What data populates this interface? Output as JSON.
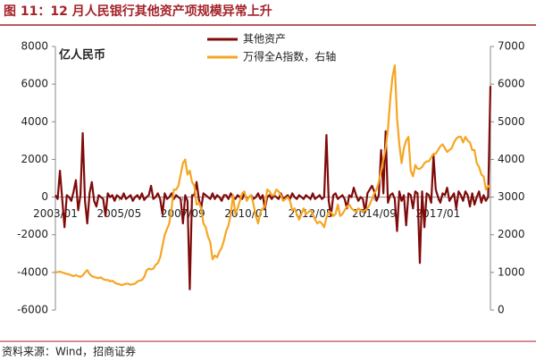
{
  "chart_data": {
    "type": "line",
    "title": "图 11：12 月人民银行其他资产项规模异常上升",
    "annotation": "亿人民币",
    "source": "资料来源：Wind，招商证券",
    "categories": [
      "2003/01",
      null,
      null,
      null,
      null,
      null,
      null,
      null,
      null,
      null,
      null,
      null,
      null,
      null,
      null,
      null,
      null,
      null,
      null,
      null,
      null,
      null,
      null,
      null,
      null,
      null,
      null,
      null,
      "2005/05",
      null,
      null,
      null,
      null,
      null,
      null,
      null,
      null,
      null,
      null,
      null,
      null,
      null,
      null,
      null,
      null,
      null,
      null,
      null,
      null,
      null,
      null,
      null,
      null,
      null,
      null,
      null,
      "2007/09",
      null,
      null,
      null,
      null,
      null,
      null,
      null,
      null,
      null,
      null,
      null,
      null,
      null,
      null,
      null,
      null,
      null,
      null,
      null,
      null,
      null,
      null,
      null,
      null,
      null,
      null,
      null,
      "2010/01",
      null,
      null,
      null,
      null,
      null,
      null,
      null,
      null,
      null,
      null,
      null,
      null,
      null,
      null,
      null,
      null,
      null,
      null,
      null,
      null,
      null,
      null,
      null,
      null,
      null,
      null,
      null,
      "2012/05",
      null,
      null,
      null,
      null,
      null,
      null,
      null,
      null,
      null,
      null,
      null,
      null,
      null,
      null,
      null,
      null,
      null,
      null,
      null,
      null,
      null,
      null,
      null,
      null,
      null,
      null,
      null,
      "2014/09",
      null,
      null,
      null,
      null,
      null,
      null,
      null,
      null,
      null,
      null,
      null,
      null,
      null,
      null,
      null,
      null,
      null,
      null,
      null,
      null,
      null,
      null,
      null,
      null,
      null,
      null,
      null,
      "2017/01",
      null,
      null,
      null,
      null,
      null,
      null,
      null,
      null,
      null,
      null,
      null,
      null,
      null,
      null,
      null,
      null,
      null,
      null,
      null,
      null,
      null,
      null,
      null
    ],
    "series": [
      {
        "name": "其他资产",
        "color": "#7f0a0a",
        "axis": "y",
        "values": [
          100,
          -100,
          1400,
          -100,
          -1600,
          100,
          0,
          -200,
          300,
          900,
          -700,
          100,
          3400,
          -200,
          -1400,
          200,
          800,
          -200,
          -500,
          100,
          0,
          -100,
          -1000,
          200,
          0,
          100,
          -200,
          100,
          0,
          -100,
          200,
          -100,
          0,
          100,
          -200,
          0,
          100,
          -100,
          200,
          -150,
          0,
          100,
          600,
          -100,
          0,
          200,
          -100,
          -900,
          200,
          -100,
          0,
          200,
          -100,
          100,
          0,
          -100,
          -1400,
          100,
          -200,
          -4900,
          100,
          100,
          800,
          -100,
          -600,
          200,
          100,
          0,
          -100,
          200,
          -100,
          100,
          0,
          -200,
          100,
          100,
          -100,
          200,
          0,
          -100,
          100,
          0,
          -100,
          200,
          -100,
          0,
          100,
          -100,
          0,
          200,
          -100,
          100,
          -600,
          0,
          100,
          -100,
          100,
          0,
          -100,
          200,
          -100,
          0,
          100,
          -100,
          200,
          0,
          -100,
          100,
          0,
          -100,
          100,
          0,
          -100,
          200,
          -100,
          0,
          100,
          -100,
          0,
          3300,
          -200,
          -1000,
          100,
          200,
          -100,
          0,
          100,
          -100,
          -600,
          100,
          0,
          500,
          100,
          -200,
          0,
          -100,
          -800,
          200,
          400,
          600,
          300,
          -200,
          100,
          2500,
          200,
          3500,
          -300,
          100,
          200,
          -100,
          -1800,
          300,
          -200,
          100,
          -1500,
          200,
          100,
          -600,
          300,
          200,
          -3500,
          300,
          -1600,
          200,
          100,
          -300,
          2200,
          400,
          0,
          -300,
          200,
          100,
          500,
          -200,
          0,
          200,
          -600,
          300,
          100,
          -200,
          300,
          100,
          -500,
          200,
          -400,
          0,
          300,
          -300,
          100,
          -200,
          0,
          5900
        ]
      },
      {
        "name": "万得全A指数，右轴",
        "color": "#f5a623",
        "axis": "y2",
        "values": [
          1000,
          1010,
          1020,
          1000,
          980,
          960,
          950,
          920,
          900,
          930,
          900,
          880,
          920,
          1000,
          1060,
          960,
          900,
          880,
          860,
          850,
          870,
          820,
          800,
          800,
          760,
          780,
          730,
          700,
          690,
          660,
          680,
          700,
          700,
          670,
          690,
          700,
          760,
          780,
          800,
          880,
          1050,
          1100,
          1080,
          1100,
          1200,
          1250,
          1400,
          1700,
          2000,
          2150,
          2300,
          2700,
          3200,
          3200,
          3300,
          3600,
          3900,
          4000,
          3600,
          3700,
          3400,
          3300,
          2800,
          2850,
          2700,
          2300,
          2200,
          1950,
          1800,
          1350,
          1450,
          1400,
          1550,
          1650,
          1850,
          2100,
          2250,
          2550,
          3050,
          2550,
          2700,
          2900,
          3100,
          3150,
          2900,
          3000,
          3050,
          2800,
          2500,
          2300,
          2600,
          2700,
          2750,
          3200,
          3150,
          3050,
          3050,
          3200,
          3150,
          3050,
          2900,
          2950,
          3000,
          2900,
          2650,
          2700,
          2550,
          2400,
          2550,
          2700,
          2550,
          2600,
          2650,
          2550,
          2400,
          2300,
          2350,
          2300,
          2200,
          2450,
          2600,
          2600,
          2500,
          2550,
          2800,
          2500,
          2550,
          2650,
          2750,
          2800,
          2700,
          2650,
          2600,
          2700,
          2650,
          2600,
          2650,
          2700,
          2800,
          2950,
          3100,
          3200,
          3400,
          3700,
          4000,
          4300,
          4800,
          5600,
          6200,
          6500,
          5100,
          4400,
          3900,
          4300,
          4500,
          4600,
          3700,
          3550,
          3850,
          3750,
          3750,
          3800,
          3900,
          3950,
          3950,
          4050,
          4150,
          4150,
          4250,
          4350,
          4400,
          4300,
          4200,
          4250,
          4300,
          4450,
          4550,
          4600,
          4600,
          4450,
          4600,
          4500,
          4450,
          4250,
          4250,
          3900,
          3800,
          3600,
          3550,
          3200,
          3300,
          3250
        ]
      }
    ],
    "ylim": [
      -6000,
      8000
    ],
    "yticks": [
      -6000,
      -4000,
      -2000,
      0,
      2000,
      4000,
      6000,
      8000
    ],
    "y2lim": [
      0,
      7000
    ],
    "y2ticks": [
      0,
      1000,
      2000,
      3000,
      4000,
      5000,
      6000,
      7000
    ],
    "legend": "top"
  }
}
